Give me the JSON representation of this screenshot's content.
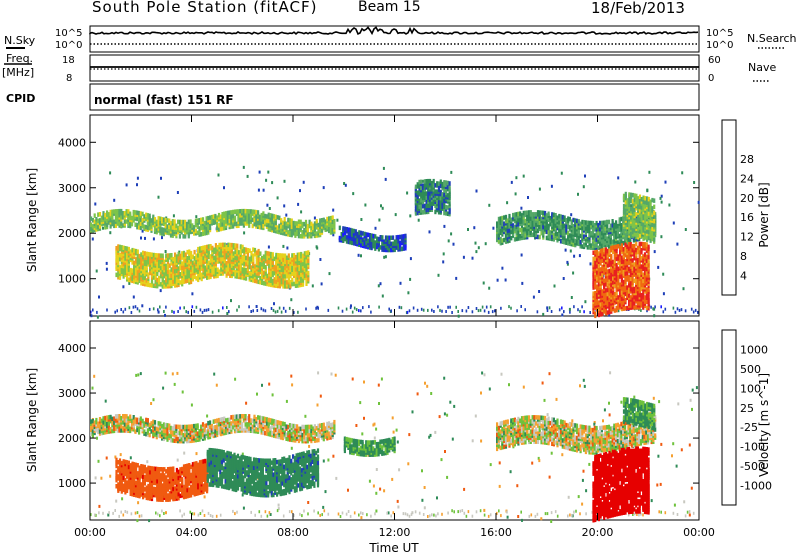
{
  "header": {
    "station": "South Pole Station (fitACF)",
    "beam": "Beam 15",
    "date": "18/Feb/2013"
  },
  "mode_label": "normal (fast) 151 RF",
  "aux_labels": {
    "nsky": "N.Sky",
    "nsearch": "N.Search",
    "freq": "Freq.",
    "freq_unit": "[MHz]",
    "nave": "Nave",
    "cpid": "CPID",
    "noise_top": "10^5",
    "noise_bottom": "10^0",
    "freq_top": "18",
    "freq_bottom": "8",
    "nave_top": "60",
    "nave_bottom": "0"
  },
  "colors": {
    "power": [
      "#1a1aff",
      "#1e3fb8",
      "#2e8b57",
      "#55a868",
      "#7dc44a",
      "#e6d21c",
      "#f0a020",
      "#f06a10",
      "#e82020"
    ],
    "velocity": [
      "#e60000",
      "#f05a10",
      "#f5a030",
      "#c8c8c0",
      "#c8c8c0",
      "#6ec23c",
      "#2e8b57",
      "#1e3fb8",
      "#1a1a9f"
    ]
  },
  "chart_data": [
    {
      "type": "heatmap",
      "title": "Power",
      "ylabel": "Slant Range [km]",
      "xlabel": "Time UT",
      "x_ticks": [
        "00:00",
        "04:00",
        "08:00",
        "12:00",
        "16:00",
        "20:00",
        "00:00"
      ],
      "x_range_hours": [
        0,
        24
      ],
      "ylim": [
        180,
        4600
      ],
      "y_ticks": [
        1000,
        2000,
        3000,
        4000
      ],
      "colorbar": {
        "label": "Power [dB]",
        "ticks": [
          4,
          8,
          12,
          16,
          20,
          24,
          28
        ],
        "range": [
          0,
          30
        ]
      },
      "regions": [
        {
          "x": [
            0.0,
            9.6
          ],
          "y": [
            2100,
            2450
          ],
          "value": 14
        },
        {
          "x": [
            1.0,
            8.6
          ],
          "y": [
            1000,
            1700
          ],
          "value": 18
        },
        {
          "x": [
            9.8,
            12.4
          ],
          "y": [
            1800,
            2100
          ],
          "value": 6
        },
        {
          "x": [
            12.8,
            14.2
          ],
          "y": [
            2400,
            3100
          ],
          "value": 8
        },
        {
          "x": [
            16.0,
            22.3
          ],
          "y": [
            1850,
            2400
          ],
          "value": 10
        },
        {
          "x": [
            19.8,
            22.0
          ],
          "y": [
            300,
            1700
          ],
          "value": 26
        },
        {
          "x": [
            21.0,
            22.2
          ],
          "y": [
            1900,
            2800
          ],
          "value": 14
        }
      ]
    },
    {
      "type": "heatmap",
      "title": "Velocity",
      "ylabel": "Slant Range [km]",
      "xlabel": "Time UT",
      "x_ticks": [
        "00:00",
        "04:00",
        "08:00",
        "12:00",
        "16:00",
        "20:00",
        "00:00"
      ],
      "x_range_hours": [
        0,
        24
      ],
      "ylim": [
        180,
        4600
      ],
      "y_ticks": [
        1000,
        2000,
        3000,
        4000
      ],
      "colorbar": {
        "label": "Velocity [m s^-1]",
        "ticks": [
          "1000",
          "500",
          "100",
          "25",
          "-25",
          "-100",
          "-500",
          "-1000"
        ]
      },
      "regions": [
        {
          "x": [
            0.0,
            9.6
          ],
          "y": [
            2100,
            2450
          ],
          "value": 0
        },
        {
          "x": [
            1.0,
            4.6
          ],
          "y": [
            800,
            1500
          ],
          "value": -400
        },
        {
          "x": [
            4.6,
            9.0
          ],
          "y": [
            900,
            1700
          ],
          "value": 400
        },
        {
          "x": [
            10.0,
            12.0
          ],
          "y": [
            1800,
            2100
          ],
          "value": 150
        },
        {
          "x": [
            16.0,
            22.3
          ],
          "y": [
            1850,
            2400
          ],
          "value": 0
        },
        {
          "x": [
            19.8,
            22.0
          ],
          "y": [
            300,
            1700
          ],
          "value": -700
        },
        {
          "x": [
            21.0,
            22.2
          ],
          "y": [
            2300,
            2800
          ],
          "value": 150
        }
      ]
    }
  ]
}
